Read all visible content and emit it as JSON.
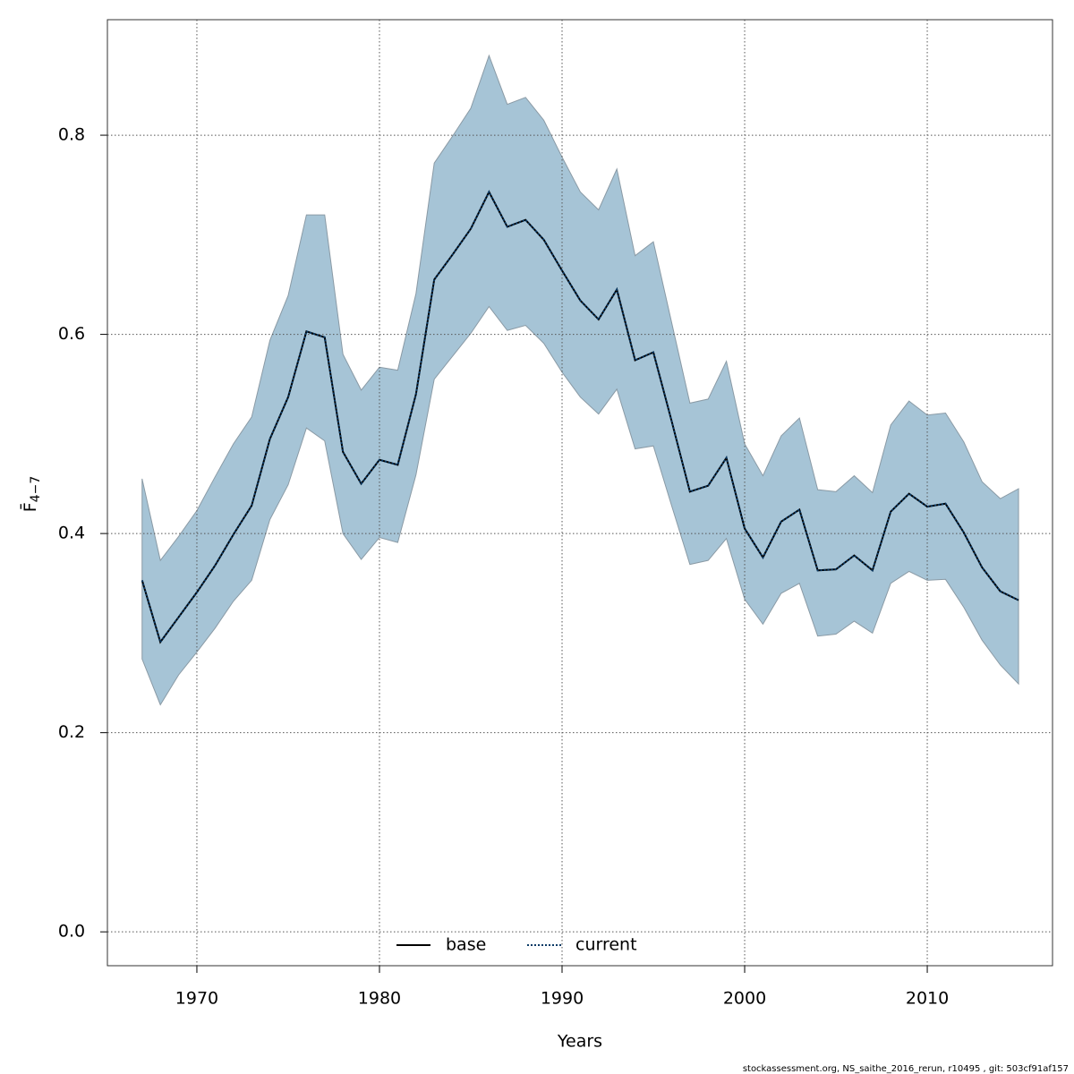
{
  "chart_data": {
    "type": "line",
    "x_label": "Years",
    "y_label": {
      "symbol": "F̄",
      "subscript": "4−7"
    },
    "footer": "stockassessment.org, NS_saithe_2016_rerun, r10495 , git: 503cf91af157",
    "x": [
      1967,
      1968,
      1969,
      1970,
      1971,
      1972,
      1973,
      1974,
      1975,
      1976,
      1977,
      1978,
      1979,
      1980,
      1981,
      1982,
      1983,
      1984,
      1985,
      1986,
      1987,
      1988,
      1989,
      1990,
      1991,
      1992,
      1993,
      1994,
      1995,
      1996,
      1997,
      1998,
      1999,
      2000,
      2001,
      2002,
      2003,
      2004,
      2005,
      2006,
      2007,
      2008,
      2009,
      2010,
      2011,
      2012,
      2013,
      2014,
      2015
    ],
    "series": [
      {
        "name": "base",
        "color": "#000000",
        "dash": "solid",
        "values": [
          0.353,
          0.291,
          0.316,
          0.341,
          0.368,
          0.399,
          0.428,
          0.495,
          0.537,
          0.603,
          0.597,
          0.482,
          0.45,
          0.474,
          0.469,
          0.54,
          0.655,
          0.68,
          0.706,
          0.743,
          0.708,
          0.715,
          0.695,
          0.664,
          0.634,
          0.615,
          0.645,
          0.574,
          0.582,
          0.513,
          0.442,
          0.448,
          0.476,
          0.405,
          0.376,
          0.412,
          0.424,
          0.363,
          0.364,
          0.378,
          0.363,
          0.422,
          0.44,
          0.427,
          0.43,
          0.401,
          0.366,
          0.342,
          0.333
        ]
      },
      {
        "name": "current",
        "color": "#0a3a66",
        "dash": "dotted",
        "values": [
          0.353,
          0.291,
          0.316,
          0.341,
          0.368,
          0.399,
          0.428,
          0.495,
          0.537,
          0.603,
          0.597,
          0.482,
          0.45,
          0.474,
          0.469,
          0.54,
          0.655,
          0.68,
          0.706,
          0.743,
          0.708,
          0.715,
          0.695,
          0.664,
          0.634,
          0.615,
          0.645,
          0.574,
          0.582,
          0.513,
          0.442,
          0.448,
          0.476,
          0.405,
          0.376,
          0.412,
          0.424,
          0.363,
          0.364,
          0.378,
          0.363,
          0.422,
          0.44,
          0.427,
          0.43,
          0.401,
          0.366,
          0.342,
          0.333
        ]
      }
    ],
    "band": {
      "color": "#a6c4d6",
      "upper": [
        0.455,
        0.373,
        0.397,
        0.423,
        0.457,
        0.49,
        0.517,
        0.594,
        0.639,
        0.72,
        0.72,
        0.58,
        0.544,
        0.567,
        0.564,
        0.641,
        0.772,
        0.799,
        0.827,
        0.88,
        0.831,
        0.838,
        0.815,
        0.778,
        0.743,
        0.725,
        0.766,
        0.679,
        0.693,
        0.612,
        0.531,
        0.535,
        0.573,
        0.49,
        0.458,
        0.498,
        0.516,
        0.444,
        0.442,
        0.458,
        0.441,
        0.509,
        0.533,
        0.519,
        0.521,
        0.492,
        0.452,
        0.435,
        0.445
      ],
      "lower": [
        0.274,
        0.228,
        0.258,
        0.281,
        0.305,
        0.332,
        0.353,
        0.414,
        0.449,
        0.506,
        0.493,
        0.4,
        0.374,
        0.396,
        0.391,
        0.459,
        0.555,
        0.578,
        0.601,
        0.628,
        0.604,
        0.609,
        0.591,
        0.562,
        0.537,
        0.52,
        0.545,
        0.485,
        0.488,
        0.428,
        0.369,
        0.373,
        0.395,
        0.334,
        0.309,
        0.34,
        0.35,
        0.297,
        0.299,
        0.312,
        0.3,
        0.35,
        0.362,
        0.353,
        0.354,
        0.326,
        0.293,
        0.268,
        0.249
      ]
    },
    "xlim": [
      1965.1,
      2016.86
    ],
    "ylim": [
      -0.034,
      0.916
    ],
    "xticks": [
      1970,
      1980,
      1990,
      2000,
      2010
    ],
    "yticks": [
      {
        "value": 0,
        "label": "0.0"
      },
      0.2,
      0.4,
      0.6,
      0.8
    ],
    "grid": true,
    "legend": "bottom"
  }
}
